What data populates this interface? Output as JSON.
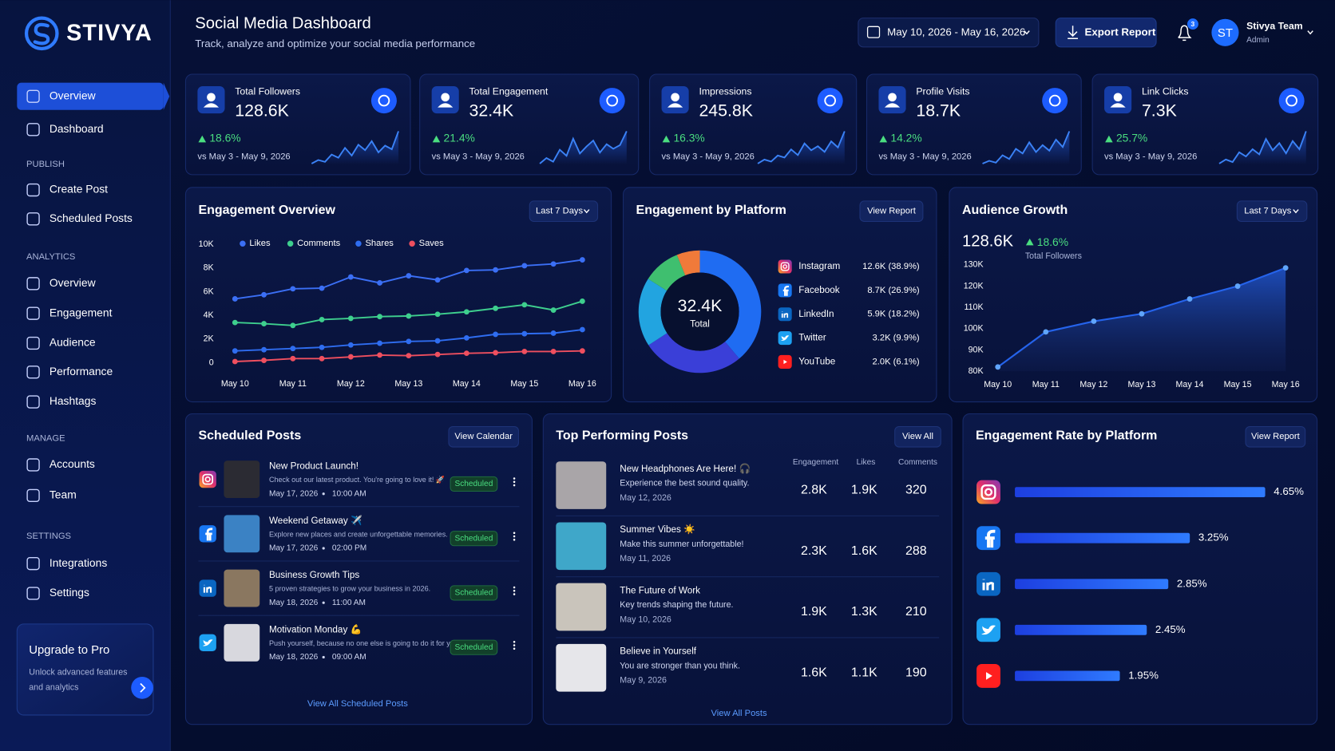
{
  "brand": "STIVYA",
  "header": {
    "title": "Social Media Dashboard",
    "subtitle": "Track, analyze and optimize your social media performance",
    "date_range": "May 10, 2026 - May 16, 2026",
    "export": "Export Report",
    "notifications": "3",
    "user_initials": "ST",
    "user_name": "Stivya Team",
    "user_role": "Admin"
  },
  "nav": {
    "main": [
      "Overview",
      "Dashboard"
    ],
    "active": 0,
    "sections": [
      {
        "title": "PUBLISH",
        "items": [
          "Create Post",
          "Scheduled Posts"
        ]
      },
      {
        "title": "ANALYTICS",
        "items": [
          "Overview",
          "Engagement",
          "Audience",
          "Performance",
          "Hashtags"
        ]
      },
      {
        "title": "MANAGE",
        "items": [
          "Accounts",
          "Team"
        ]
      },
      {
        "title": "SETTINGS",
        "items": [
          "Integrations",
          "Settings"
        ]
      }
    ]
  },
  "upgrade": {
    "title": "Upgrade to Pro",
    "text_lines": [
      "Unlock advanced features",
      "and analytics"
    ]
  },
  "kpis": [
    {
      "label": "Total Followers",
      "value": "128.6K",
      "change": "18.6%",
      "compare": "vs May 3 - May 9, 2026",
      "trend": [
        20,
        28,
        24,
        40,
        33,
        55,
        38,
        62,
        50,
        70,
        45,
        60,
        52,
        92
      ]
    },
    {
      "label": "Total Engagement",
      "value": "32.4K",
      "change": "21.4%",
      "compare": "vs May 3 - May 9, 2026",
      "trend": [
        18,
        30,
        22,
        48,
        35,
        72,
        40,
        55,
        68,
        42,
        60,
        50,
        58,
        88
      ]
    },
    {
      "label": "Impressions",
      "value": "245.8K",
      "change": "16.3%",
      "compare": "vs May 3 - May 9, 2026",
      "trend": [
        15,
        25,
        20,
        35,
        30,
        50,
        36,
        65,
        48,
        58,
        44,
        70,
        55,
        95
      ]
    },
    {
      "label": "Profile Visits",
      "value": "18.7K",
      "change": "14.2%",
      "compare": "vs May 3 - May 9, 2026",
      "trend": [
        20,
        26,
        22,
        38,
        30,
        52,
        42,
        66,
        45,
        60,
        48,
        72,
        56,
        90
      ]
    },
    {
      "label": "Link Clicks",
      "value": "7.3K",
      "change": "25.7%",
      "compare": "vs May 3 - May 9, 2026",
      "trend": [
        22,
        30,
        25,
        44,
        36,
        50,
        40,
        70,
        48,
        62,
        42,
        66,
        50,
        85
      ]
    }
  ],
  "chart_data": [
    {
      "type": "line",
      "title": "Engagement Overview",
      "action": "Last 7 Days",
      "categories": [
        "May 10",
        null,
        "May 11",
        null,
        "May 12",
        null,
        "May 13",
        null,
        "May 14",
        null,
        "May 15",
        null,
        "May 16"
      ],
      "ylim": [
        0,
        10000
      ],
      "yticks": [
        0,
        {
          "value": 2000,
          "label": "2K"
        },
        {
          "value": 4000,
          "label": "4K"
        },
        {
          "value": 6000,
          "label": "6K"
        },
        {
          "value": 8000,
          "label": "8K"
        },
        {
          "value": 10000,
          "label": "10K"
        }
      ],
      "series": [
        {
          "name": "Likes",
          "color": "#3b6ff5",
          "values": [
            5400,
            5750,
            6250,
            6300,
            7250,
            6750,
            7350,
            7000,
            7800,
            7850,
            8200,
            8350,
            8700
          ]
        },
        {
          "name": "Comments",
          "color": "#3ecf8e",
          "values": [
            3400,
            3300,
            3150,
            3650,
            3750,
            3900,
            3950,
            4100,
            4300,
            4600,
            4900,
            4450,
            5200
          ]
        },
        {
          "name": "Shares",
          "color": "#2f6df0",
          "values": [
            1000,
            1100,
            1200,
            1300,
            1500,
            1650,
            1800,
            1850,
            2100,
            2400,
            2450,
            2500,
            2800
          ]
        },
        {
          "name": "Saves",
          "color": "#ef4f5f",
          "values": [
            100,
            200,
            350,
            350,
            500,
            650,
            600,
            700,
            800,
            850,
            950,
            950,
            1000
          ]
        }
      ]
    },
    {
      "type": "pie",
      "title": "Engagement by Platform",
      "action": "View Report",
      "center_value": "32.4K",
      "center_label": "Total",
      "categories": [
        "Instagram",
        "Facebook",
        "LinkedIn",
        "Twitter",
        "YouTube"
      ],
      "values": [
        38.9,
        26.9,
        18.2,
        9.9,
        6.1
      ],
      "value_labels": [
        "12.6K (38.9%)",
        "8.7K (26.9%)",
        "5.9K (18.2%)",
        "3.2K (9.9%)",
        "2.0K (6.1%)"
      ],
      "colors": [
        "#1f6cf2",
        "#3a3fd8",
        "#22a4e0",
        "#3fbf6f",
        "#f07a3a"
      ]
    },
    {
      "type": "area",
      "title": "Audience Growth",
      "action": "Last 7 Days",
      "summary_value": "128.6K",
      "summary_change": "18.6%",
      "summary_label": "Total Followers",
      "categories": [
        "May 10",
        "May 11",
        "May 12",
        "May 13",
        "May 14",
        "May 15",
        "May 16"
      ],
      "values": [
        82000,
        98500,
        103500,
        107000,
        114000,
        120000,
        128600
      ],
      "color": "#2563eb",
      "ylim": [
        80000,
        130000
      ],
      "yticks": [
        {
          "value": 80000,
          "label": "80K"
        },
        {
          "value": 90000,
          "label": "90K"
        },
        {
          "value": 100000,
          "label": "100K"
        },
        {
          "value": 110000,
          "label": "110K"
        },
        {
          "value": 120000,
          "label": "120K"
        },
        {
          "value": 130000,
          "label": "130K"
        }
      ]
    },
    {
      "type": "hbar",
      "title": "Engagement Rate by Platform",
      "action": "View Report",
      "values": [
        4.65,
        3.25,
        2.85,
        2.45,
        1.95
      ],
      "value_labels": [
        "4.65%",
        "3.25%",
        "2.85%",
        "2.45%",
        "1.95%"
      ],
      "color": "#2457f5"
    }
  ],
  "scheduled_posts": {
    "title": "Scheduled Posts",
    "action": "View Calendar",
    "footer": "View All Scheduled Posts",
    "posts": [
      {
        "title": "New Product Launch!",
        "text": "Check out our latest product. You're going to love it! 🚀",
        "date": "May 17, 2026",
        "time": "10:00 AM",
        "status": "Scheduled"
      },
      {
        "title": "Weekend Getaway ✈️",
        "text": "Explore new places and create unforgettable memories.",
        "date": "May 17, 2026",
        "time": "02:00 PM",
        "status": "Scheduled"
      },
      {
        "title": "Business Growth Tips",
        "text": "5 proven strategies to grow your business in 2026.",
        "date": "May 18, 2026",
        "time": "11:00 AM",
        "status": "Scheduled"
      },
      {
        "title": "Motivation Monday 💪",
        "text": "Push yourself, because no one else is going to do it for you.",
        "date": "May 18, 2026",
        "time": "09:00 AM",
        "status": "Scheduled"
      }
    ]
  },
  "top_posts": {
    "title": "Top Performing Posts",
    "action": "View All",
    "footer": "View All Posts",
    "columns": [
      "Engagement",
      "Likes",
      "Comments"
    ],
    "rows": [
      {
        "title": "New Headphones Are Here! 🎧",
        "text": "Experience the best sound quality.",
        "date": "May 12, 2026",
        "cells": [
          "2.8K",
          "1.9K",
          "320"
        ]
      },
      {
        "title": "Summer Vibes ☀️",
        "text": "Make this summer unforgettable!",
        "date": "May 11, 2026",
        "cells": [
          "2.3K",
          "1.6K",
          "288"
        ]
      },
      {
        "title": "The Future of Work",
        "text": "Key trends shaping the future.",
        "date": "May 10, 2026",
        "cells": [
          "1.9K",
          "1.3K",
          "210"
        ]
      },
      {
        "title": "Believe in Yourself",
        "text": "You are stronger than you think.",
        "date": "May 9, 2026",
        "cells": [
          "1.6K",
          "1.1K",
          "190"
        ]
      }
    ]
  }
}
